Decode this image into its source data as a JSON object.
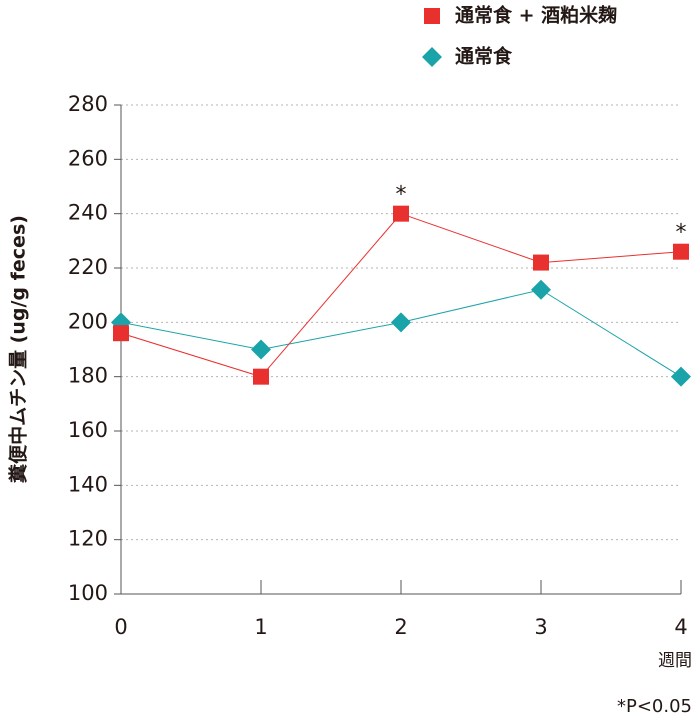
{
  "chart_data": {
    "type": "line",
    "title": "",
    "xlabel": "週間",
    "ylabel": "糞便中ムチン量 (ug/g feces)",
    "x": [
      0,
      1,
      2,
      3,
      4
    ],
    "x_tick_labels": [
      "0",
      "1",
      "2",
      "3",
      "4"
    ],
    "ylim": [
      100,
      280
    ],
    "y_ticks": [
      100,
      120,
      140,
      160,
      180,
      200,
      220,
      240,
      260,
      280
    ],
    "y_tick_labels": [
      "100",
      "120",
      "140",
      "160",
      "180",
      "200",
      "220",
      "240",
      "260",
      "280"
    ],
    "grid": "horizontal dotted",
    "legend_position": "top-right",
    "series": [
      {
        "name": "通常食 + 酒粕米麹",
        "marker": "square",
        "color": "#e8302f",
        "values": [
          196,
          180,
          240,
          222,
          226
        ]
      },
      {
        "name": "通常食",
        "marker": "diamond",
        "color": "#1aa3a8",
        "values": [
          200,
          190,
          200,
          212,
          180
        ]
      }
    ],
    "annotations": [
      {
        "x": 2,
        "series": 0,
        "text": "*"
      },
      {
        "x": 4,
        "series": 0,
        "text": "*"
      }
    ],
    "footnote": "*P<0.05"
  }
}
